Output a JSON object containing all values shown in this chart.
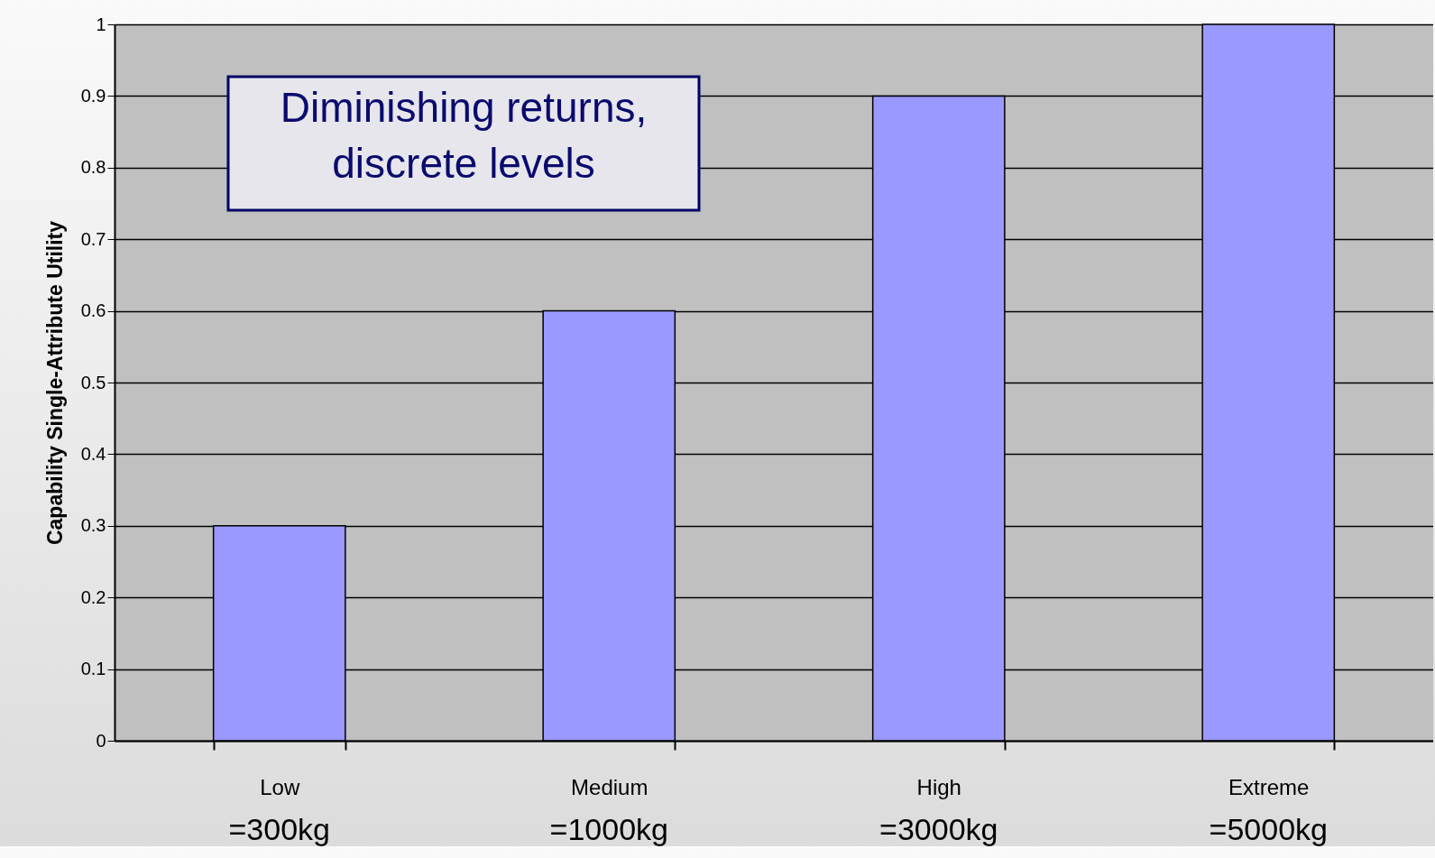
{
  "chart_data": {
    "type": "bar",
    "ylabel": "Capability Single-Attribute Utility",
    "categories": [
      "Low",
      "Medium",
      "High",
      "Extreme"
    ],
    "values": [
      0.3,
      0.6,
      0.9,
      1
    ],
    "color": "#9999ff",
    "ylim": [
      0,
      1
    ],
    "yticks": [
      0,
      0.1,
      0.2,
      0.3,
      0.4,
      0.5,
      0.6,
      0.7,
      0.8,
      0.9,
      1
    ],
    "grid": "y",
    "annotations": [
      "=300kg",
      "=1000kg",
      "=3000kg",
      "=5000kg",
      "Diminishing returns, discrete levels"
    ]
  }
}
